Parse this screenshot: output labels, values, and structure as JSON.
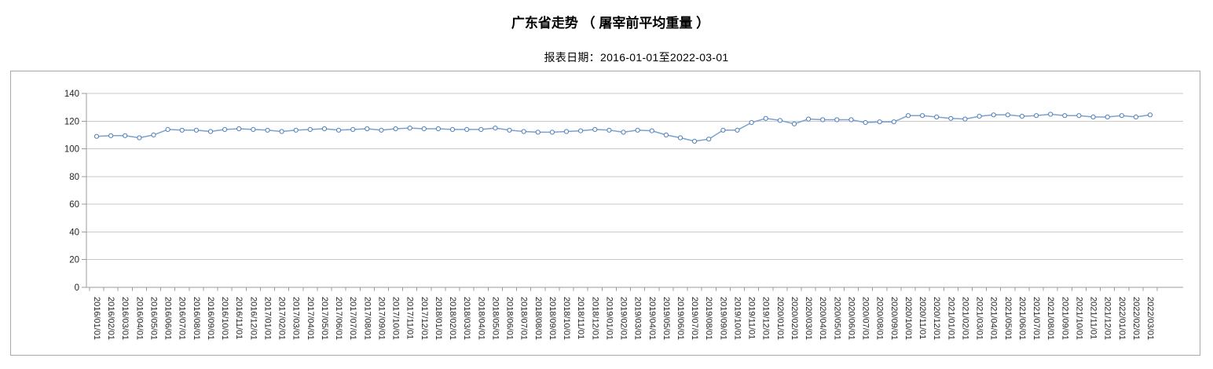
{
  "title": "广东省走势 （ 屠宰前平均重量 ）",
  "subtitle": "报表日期：2016-01-01至2022-03-01",
  "chart_data": {
    "type": "line",
    "title": "广东省走势 （ 屠宰前平均重量 ）",
    "series_name": "屠宰前平均重量",
    "legend": "none",
    "grid": "horizontal",
    "ylim": [
      0,
      140
    ],
    "yticks": [
      0,
      20,
      40,
      60,
      80,
      100,
      120,
      140
    ],
    "x": [
      "2016/01/01",
      "2016/02/01",
      "2016/03/01",
      "2016/04/01",
      "2016/05/01",
      "2016/06/01",
      "2016/07/01",
      "2016/08/01",
      "2016/09/01",
      "2016/10/01",
      "2016/11/01",
      "2016/12/01",
      "2017/01/01",
      "2017/02/01",
      "2017/03/01",
      "2017/04/01",
      "2017/05/01",
      "2017/06/01",
      "2017/07/01",
      "2017/08/01",
      "2017/09/01",
      "2017/10/01",
      "2017/11/01",
      "2017/12/01",
      "2018/01/01",
      "2018/02/01",
      "2018/03/01",
      "2018/04/01",
      "2018/05/01",
      "2018/06/01",
      "2018/07/01",
      "2018/08/01",
      "2018/09/01",
      "2018/10/01",
      "2018/11/01",
      "2018/12/01",
      "2019/01/01",
      "2019/02/01",
      "2019/03/01",
      "2019/04/01",
      "2019/05/01",
      "2019/06/01",
      "2019/07/01",
      "2019/08/01",
      "2019/09/01",
      "2019/10/01",
      "2019/11/01",
      "2019/12/01",
      "2020/01/01",
      "2020/02/01",
      "2020/03/01",
      "2020/04/01",
      "2020/05/01",
      "2020/06/01",
      "2020/07/01",
      "2020/08/01",
      "2020/09/01",
      "2020/10/01",
      "2020/11/01",
      "2020/12/01",
      "2021/01/01",
      "2021/02/01",
      "2021/03/01",
      "2021/04/01",
      "2021/05/01",
      "2021/06/01",
      "2021/07/01",
      "2021/08/01",
      "2021/09/01",
      "2021/10/01",
      "2021/11/01",
      "2021/12/01",
      "2022/01/01",
      "2022/02/01",
      "2022/03/01"
    ],
    "values": [
      109,
      109.5,
      109.5,
      108,
      110,
      114,
      113.5,
      113.5,
      112.5,
      114,
      114.5,
      114,
      113.5,
      112.5,
      113.5,
      114,
      114.5,
      113.5,
      114,
      114.5,
      113.5,
      114.5,
      115,
      114.5,
      114.5,
      114,
      114,
      114,
      115,
      113.5,
      112.5,
      112,
      112,
      112.5,
      113,
      114,
      113.5,
      112,
      113.5,
      113,
      110,
      108,
      105.5,
      107,
      113.5,
      113.5,
      119,
      122,
      120.5,
      118,
      121.5,
      121,
      121,
      121,
      119,
      119.5,
      119.5,
      124,
      124,
      123,
      122,
      121.5,
      123.5,
      124.5,
      124.5,
      123.5,
      124,
      125,
      124,
      124,
      123,
      123,
      124,
      123,
      124.5
    ],
    "colors": {
      "line": "#7aa1d2",
      "marker_fill": "#ffffff",
      "marker_stroke": "#4e80ba",
      "grid": "#c9c9c9",
      "axis": "#9b9b9b",
      "tick_label": "#262626",
      "panel_border": "#a9a9a9",
      "text": "#000000"
    }
  }
}
